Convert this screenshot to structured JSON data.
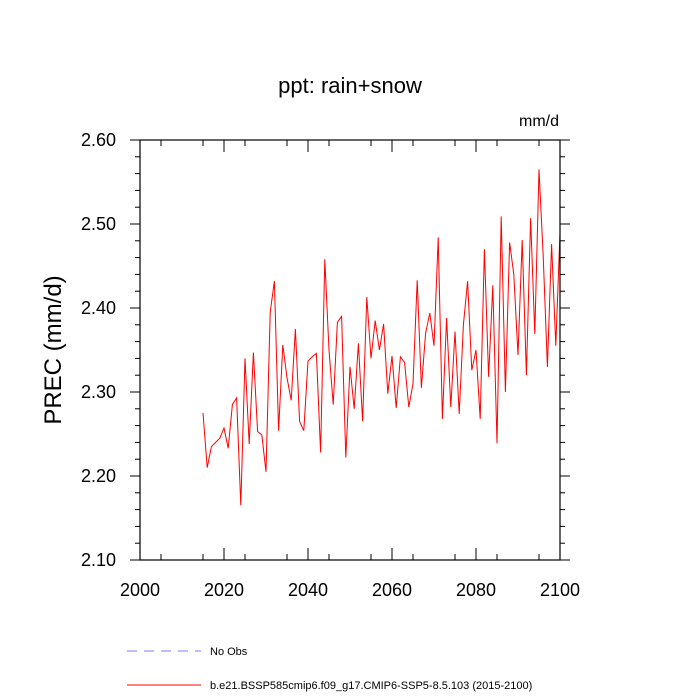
{
  "chart_data": {
    "type": "line",
    "title": "ppt: rain+snow",
    "units": "mm/d",
    "xlabel": "",
    "ylabel": "PREC  (mm/d)",
    "xlim": [
      2000,
      2100
    ],
    "ylim": [
      2.1,
      2.6
    ],
    "xticks": [
      2000,
      2020,
      2040,
      2060,
      2080,
      2100
    ],
    "yticks": [
      2.1,
      2.2,
      2.3,
      2.4,
      2.5,
      2.6
    ],
    "xtick_labels": [
      "2000",
      "2020",
      "2040",
      "2060",
      "2080",
      "2100"
    ],
    "ytick_labels": [
      "2.10",
      "2.20",
      "2.30",
      "2.40",
      "2.50",
      "2.60"
    ],
    "legend": [
      {
        "name": "No Obs",
        "color": "#7b7bff",
        "style": "dashed"
      },
      {
        "name": "b.e21.BSSP585cmip6.f09_g17.CMIP6-SSP5-8.5.103 (2015-2100)",
        "color": "#ff0000",
        "style": "solid"
      }
    ],
    "series": [
      {
        "name": "b.e21.BSSP585cmip6.f09_g17.CMIP6-SSP5-8.5.103 (2015-2100)",
        "color": "#ff0000",
        "x": [
          2015,
          2016,
          2017,
          2018,
          2019,
          2020,
          2021,
          2022,
          2023,
          2024,
          2025,
          2026,
          2027,
          2028,
          2029,
          2030,
          2031,
          2032,
          2033,
          2034,
          2035,
          2036,
          2037,
          2038,
          2039,
          2040,
          2041,
          2042,
          2043,
          2044,
          2045,
          2046,
          2047,
          2048,
          2049,
          2050,
          2051,
          2052,
          2053,
          2054,
          2055,
          2056,
          2057,
          2058,
          2059,
          2060,
          2061,
          2062,
          2063,
          2064,
          2065,
          2066,
          2067,
          2068,
          2069,
          2070,
          2071,
          2072,
          2073,
          2074,
          2075,
          2076,
          2077,
          2078,
          2079,
          2080,
          2081,
          2082,
          2083,
          2084,
          2085,
          2086,
          2087,
          2088,
          2089,
          2090,
          2091,
          2092,
          2093,
          2094,
          2095,
          2096,
          2097,
          2098,
          2099,
          2100
        ],
        "values": [
          2.275,
          2.21,
          2.235,
          2.24,
          2.245,
          2.257,
          2.233,
          2.285,
          2.293,
          2.165,
          2.34,
          2.238,
          2.347,
          2.253,
          2.249,
          2.205,
          2.395,
          2.432,
          2.254,
          2.356,
          2.317,
          2.29,
          2.375,
          2.265,
          2.254,
          2.337,
          2.342,
          2.346,
          2.228,
          2.458,
          2.35,
          2.285,
          2.383,
          2.39,
          2.222,
          2.33,
          2.28,
          2.358,
          2.265,
          2.413,
          2.34,
          2.385,
          2.35,
          2.381,
          2.298,
          2.343,
          2.281,
          2.342,
          2.335,
          2.282,
          2.31,
          2.433,
          2.305,
          2.37,
          2.394,
          2.355,
          2.484,
          2.268,
          2.388,
          2.282,
          2.372,
          2.274,
          2.38,
          2.432,
          2.326,
          2.35,
          2.268,
          2.47,
          2.318,
          2.427,
          2.239,
          2.509,
          2.3,
          2.478,
          2.44,
          2.344,
          2.481,
          2.32,
          2.507,
          2.369,
          2.565,
          2.462,
          2.33,
          2.476,
          2.355,
          2.49
        ]
      }
    ]
  }
}
